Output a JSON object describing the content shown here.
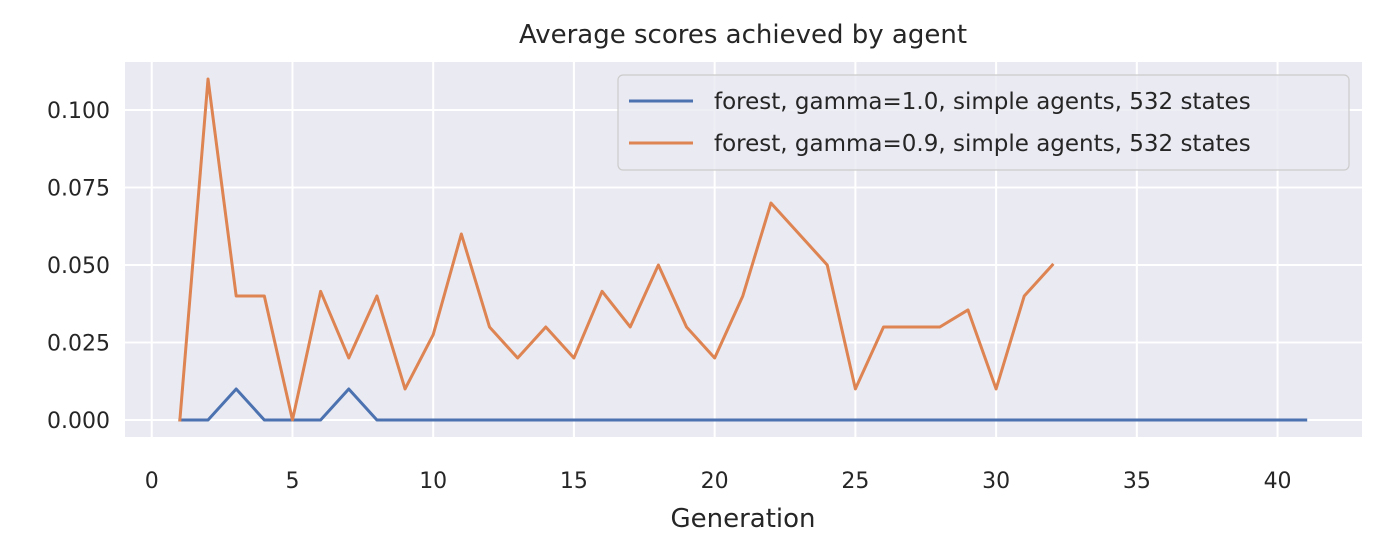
{
  "chart_data": {
    "type": "line",
    "title": "Average scores achieved by agent",
    "xlabel": "Generation",
    "ylabel": "",
    "xlim": [
      -0.95,
      43.0
    ],
    "ylim": [
      -0.0055,
      0.1155
    ],
    "xticks": [
      0,
      5,
      10,
      15,
      20,
      25,
      30,
      35,
      40
    ],
    "xtick_labels": [
      "0",
      "5",
      "10",
      "15",
      "20",
      "25",
      "30",
      "35",
      "40"
    ],
    "yticks": [
      0.0,
      0.025,
      0.05,
      0.075,
      0.1
    ],
    "ytick_labels": [
      "0.000",
      "0.025",
      "0.050",
      "0.075",
      "0.100"
    ],
    "grid": true,
    "legend_position": "top-right",
    "series": [
      {
        "name": "forest, gamma=1.0, simple agents, 532 states",
        "color": "#4c72b0",
        "x": [
          1,
          2,
          3,
          4,
          5,
          6,
          7,
          8,
          9,
          10,
          11,
          12,
          13,
          14,
          15,
          16,
          17,
          18,
          19,
          20,
          21,
          22,
          23,
          24,
          25,
          26,
          27,
          28,
          29,
          30,
          31,
          32,
          33,
          34,
          35,
          36,
          37,
          38,
          39,
          40,
          41
        ],
        "y": [
          0,
          0,
          0.01,
          0,
          0,
          0,
          0.01,
          0,
          0,
          0,
          0,
          0,
          0,
          0,
          0,
          0,
          0,
          0,
          0,
          0,
          0,
          0,
          0,
          0,
          0,
          0,
          0,
          0,
          0,
          0,
          0,
          0,
          0,
          0,
          0,
          0,
          0,
          0,
          0,
          0,
          0
        ]
      },
      {
        "name": "forest, gamma=0.9, simple agents, 532 states",
        "color": "#dd8452",
        "x": [
          1,
          2,
          3,
          4,
          5,
          6,
          7,
          8,
          9,
          10,
          11,
          12,
          13,
          14,
          15,
          16,
          17,
          18,
          19,
          20,
          21,
          22,
          23,
          24,
          25,
          26,
          27,
          28,
          29,
          30,
          31,
          32
        ],
        "y": [
          0,
          0.11,
          0.04,
          0.04,
          0,
          0.0415,
          0.02,
          0.04,
          0.01,
          0.0275,
          0.06,
          0.03,
          0.02,
          0.03,
          0.02,
          0.0415,
          0.03,
          0.05,
          0.03,
          0.02,
          0.04,
          0.07,
          0.06,
          0.05,
          0.01,
          0.03,
          0.03,
          0.03,
          0.0355,
          0.01,
          0.04,
          0.05
        ]
      }
    ]
  }
}
